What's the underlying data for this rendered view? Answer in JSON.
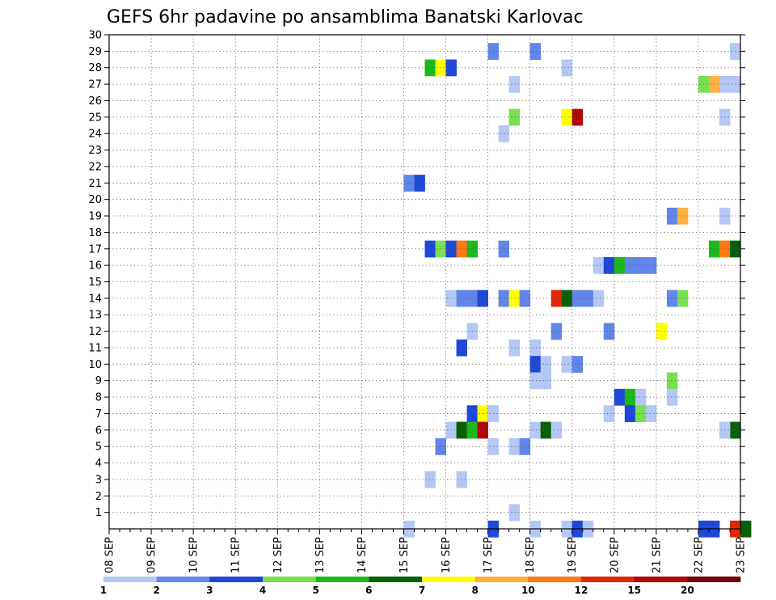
{
  "chart_data": {
    "type": "heatmap",
    "title": "GEFS 6hr padavine po ansamblima Banatski Karlovac",
    "x_tick_labels": [
      "08 SEP",
      "09 SEP",
      "10 SEP",
      "11 SEP",
      "12 SEP",
      "13 SEP",
      "14 SEP",
      "15 SEP",
      "16 SEP",
      "17 SEP",
      "18 SEP",
      "19 SEP",
      "20 SEP",
      "21 SEP",
      "22 SEP",
      "23 SEP"
    ],
    "y_tick_labels": [
      "1",
      "2",
      "3",
      "4",
      "5",
      "6",
      "7",
      "8",
      "9",
      "10",
      "11",
      "12",
      "13",
      "14",
      "15",
      "16",
      "17",
      "18",
      "19",
      "20",
      "21",
      "22",
      "23",
      "24",
      "25",
      "26",
      "27",
      "28",
      "29",
      "30"
    ],
    "ylim": [
      0,
      30
    ],
    "steps_per_day": 4,
    "grid": true,
    "legend": {
      "placement": "bottom",
      "labels": [
        "1",
        "2",
        "3",
        "4",
        "5",
        "6",
        "7",
        "8",
        "10",
        "12",
        "15",
        "20"
      ],
      "colors": [
        "#b4c7f5",
        "#5f86e8",
        "#2048d8",
        "#78e050",
        "#1cb81c",
        "#086008",
        "#ffff00",
        "#ffb040",
        "#ff7810",
        "#e02808",
        "#b00808",
        "#700000"
      ]
    },
    "cells": [
      {
        "m": 29,
        "s": 36,
        "c": 1
      },
      {
        "m": 29,
        "s": 40,
        "c": 1
      },
      {
        "m": 29,
        "s": 59,
        "c": 0
      },
      {
        "m": 28,
        "s": 30,
        "c": 4
      },
      {
        "m": 28,
        "s": 31,
        "c": 6
      },
      {
        "m": 28,
        "s": 32,
        "c": 2
      },
      {
        "m": 28,
        "s": 43,
        "c": 0
      },
      {
        "m": 27,
        "s": 38,
        "c": 0
      },
      {
        "m": 27,
        "s": 56,
        "c": 3
      },
      {
        "m": 27,
        "s": 57,
        "c": 7
      },
      {
        "m": 27,
        "s": 58,
        "c": 0
      },
      {
        "m": 27,
        "s": 59,
        "c": 0
      },
      {
        "m": 25,
        "s": 38,
        "c": 3
      },
      {
        "m": 25,
        "s": 43,
        "c": 6
      },
      {
        "m": 25,
        "s": 44,
        "c": 10
      },
      {
        "m": 25,
        "s": 58,
        "c": 0
      },
      {
        "m": 24,
        "s": 37,
        "c": 0
      },
      {
        "m": 21,
        "s": 28,
        "c": 1
      },
      {
        "m": 21,
        "s": 29,
        "c": 2
      },
      {
        "m": 19,
        "s": 53,
        "c": 1
      },
      {
        "m": 19,
        "s": 54,
        "c": 7
      },
      {
        "m": 19,
        "s": 58,
        "c": 0
      },
      {
        "m": 17,
        "s": 30,
        "c": 2
      },
      {
        "m": 17,
        "s": 31,
        "c": 3
      },
      {
        "m": 17,
        "s": 32,
        "c": 2
      },
      {
        "m": 17,
        "s": 33,
        "c": 8
      },
      {
        "m": 17,
        "s": 34,
        "c": 4
      },
      {
        "m": 17,
        "s": 37,
        "c": 1
      },
      {
        "m": 17,
        "s": 57,
        "c": 4
      },
      {
        "m": 17,
        "s": 58,
        "c": 8
      },
      {
        "m": 17,
        "s": 59,
        "c": 5
      },
      {
        "m": 16,
        "s": 46,
        "c": 0
      },
      {
        "m": 16,
        "s": 47,
        "c": 2
      },
      {
        "m": 16,
        "s": 48,
        "c": 4
      },
      {
        "m": 16,
        "s": 49,
        "c": 1
      },
      {
        "m": 16,
        "s": 50,
        "c": 1
      },
      {
        "m": 16,
        "s": 51,
        "c": 1
      },
      {
        "m": 14,
        "s": 32,
        "c": 0
      },
      {
        "m": 14,
        "s": 33,
        "c": 1
      },
      {
        "m": 14,
        "s": 34,
        "c": 1
      },
      {
        "m": 14,
        "s": 35,
        "c": 2
      },
      {
        "m": 14,
        "s": 37,
        "c": 1
      },
      {
        "m": 14,
        "s": 38,
        "c": 6
      },
      {
        "m": 14,
        "s": 39,
        "c": 1
      },
      {
        "m": 14,
        "s": 42,
        "c": 9
      },
      {
        "m": 14,
        "s": 43,
        "c": 5
      },
      {
        "m": 14,
        "s": 44,
        "c": 1
      },
      {
        "m": 14,
        "s": 45,
        "c": 1
      },
      {
        "m": 14,
        "s": 46,
        "c": 0
      },
      {
        "m": 14,
        "s": 53,
        "c": 1
      },
      {
        "m": 14,
        "s": 54,
        "c": 3
      },
      {
        "m": 12,
        "s": 34,
        "c": 0
      },
      {
        "m": 12,
        "s": 42,
        "c": 1
      },
      {
        "m": 12,
        "s": 47,
        "c": 1
      },
      {
        "m": 12,
        "s": 52,
        "c": 6
      },
      {
        "m": 11,
        "s": 33,
        "c": 2
      },
      {
        "m": 11,
        "s": 38,
        "c": 0
      },
      {
        "m": 11,
        "s": 40,
        "c": 0
      },
      {
        "m": 10,
        "s": 40,
        "c": 2
      },
      {
        "m": 10,
        "s": 41,
        "c": 0
      },
      {
        "m": 10,
        "s": 43,
        "c": 0
      },
      {
        "m": 10,
        "s": 44,
        "c": 1
      },
      {
        "m": 9,
        "s": 40,
        "c": 0
      },
      {
        "m": 9,
        "s": 41,
        "c": 0
      },
      {
        "m": 9,
        "s": 53,
        "c": 3
      },
      {
        "m": 8,
        "s": 48,
        "c": 2
      },
      {
        "m": 8,
        "s": 49,
        "c": 4
      },
      {
        "m": 8,
        "s": 50,
        "c": 0
      },
      {
        "m": 8,
        "s": 53,
        "c": 0
      },
      {
        "m": 7,
        "s": 34,
        "c": 2
      },
      {
        "m": 7,
        "s": 35,
        "c": 6
      },
      {
        "m": 7,
        "s": 36,
        "c": 0
      },
      {
        "m": 7,
        "s": 47,
        "c": 0
      },
      {
        "m": 7,
        "s": 49,
        "c": 2
      },
      {
        "m": 7,
        "s": 50,
        "c": 3
      },
      {
        "m": 7,
        "s": 51,
        "c": 0
      },
      {
        "m": 6,
        "s": 32,
        "c": 0
      },
      {
        "m": 6,
        "s": 33,
        "c": 5
      },
      {
        "m": 6,
        "s": 34,
        "c": 4
      },
      {
        "m": 6,
        "s": 35,
        "c": 10
      },
      {
        "m": 6,
        "s": 40,
        "c": 0
      },
      {
        "m": 6,
        "s": 41,
        "c": 5
      },
      {
        "m": 6,
        "s": 42,
        "c": 0
      },
      {
        "m": 6,
        "s": 59,
        "c": 5
      },
      {
        "m": 6,
        "s": 58,
        "c": 0
      },
      {
        "m": 5,
        "s": 31,
        "c": 1
      },
      {
        "m": 5,
        "s": 36,
        "c": 0
      },
      {
        "m": 5,
        "s": 38,
        "c": 0
      },
      {
        "m": 5,
        "s": 39,
        "c": 1
      },
      {
        "m": 3,
        "s": 30,
        "c": 0
      },
      {
        "m": 3,
        "s": 33,
        "c": 0
      },
      {
        "m": 1,
        "s": 38,
        "c": 0
      },
      {
        "m": 0,
        "s": 28,
        "c": 0
      },
      {
        "m": 0,
        "s": 36,
        "c": 2
      },
      {
        "m": 0,
        "s": 40,
        "c": 0
      },
      {
        "m": 0,
        "s": 43,
        "c": 0
      },
      {
        "m": 0,
        "s": 44,
        "c": 2
      },
      {
        "m": 0,
        "s": 45,
        "c": 0
      },
      {
        "m": 0,
        "s": 56,
        "c": 2
      },
      {
        "m": 0,
        "s": 57,
        "c": 2
      },
      {
        "m": 0,
        "s": 59,
        "c": 9
      },
      {
        "m": 0,
        "s": 60,
        "c": 5
      }
    ]
  }
}
